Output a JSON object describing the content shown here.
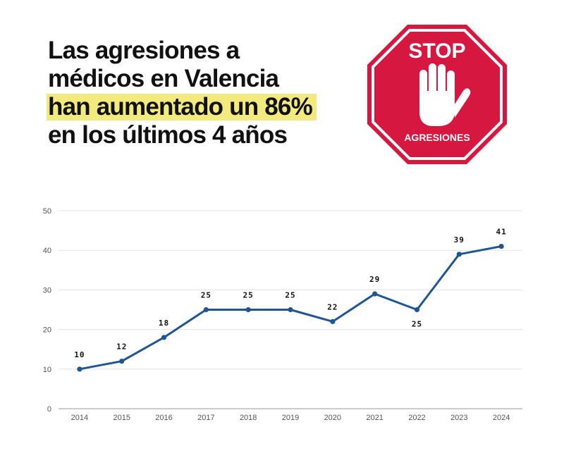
{
  "headline": {
    "line1": "Las agresiones a",
    "line2": "médicos en Valencia",
    "line3": "han aumentado un 86%",
    "line4": "en los últimos 4 años"
  },
  "stop_sign": {
    "top_text": "STOP",
    "bottom_text": "AGRESIONES",
    "color": "#d6173f",
    "icon": "raised-hand-icon"
  },
  "chart_data": {
    "type": "line",
    "title": "",
    "xlabel": "",
    "ylabel": "",
    "x": [
      "2014",
      "2015",
      "2016",
      "2017",
      "2018",
      "2019",
      "2020",
      "2021",
      "2022",
      "2023",
      "2024"
    ],
    "series": [
      {
        "values": [
          10,
          12,
          18,
          25,
          25,
          25,
          22,
          29,
          25,
          39,
          41
        ],
        "color": "#1f5592"
      }
    ],
    "data_labels": [
      "10",
      "12",
      "18",
      "25",
      "25",
      "25",
      "22",
      "29",
      "25",
      "39",
      "41"
    ],
    "data_label_position": [
      "above",
      "above",
      "above",
      "above",
      "above",
      "above",
      "above",
      "above",
      "below",
      "above",
      "above"
    ],
    "ylim": [
      0,
      50
    ],
    "yticks": [
      "0",
      "10",
      "20",
      "30",
      "40",
      "50"
    ],
    "grid": true,
    "legend": "none"
  }
}
